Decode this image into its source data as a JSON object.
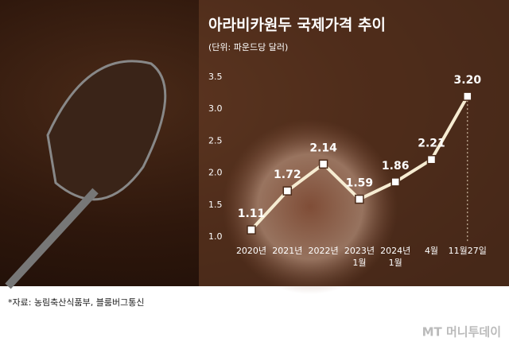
{
  "chart_data": {
    "type": "line",
    "title": "아라비카원두 국제가격 추이",
    "subtitle": "(단위: 파운드당 달러)",
    "categories": [
      "2020년",
      "2021년",
      "2022년",
      "2023년\n1월",
      "2024년\n1월",
      "4월",
      "11월27일"
    ],
    "values": [
      1.11,
      1.72,
      2.14,
      1.59,
      1.86,
      2.21,
      3.2
    ],
    "value_labels": [
      "1.11",
      "1.72",
      "2.14",
      "1.59",
      "1.86",
      "2.21",
      "3.20"
    ],
    "color": "#f6ecd2",
    "ylim": [
      1.0,
      3.5
    ],
    "yticks": [
      {
        "value": 1.0,
        "label": "1.0"
      },
      1.5,
      {
        "value": 2.0,
        "label": "2.0"
      },
      2.5,
      {
        "value": 3.0,
        "label": "3.0"
      },
      3.5
    ],
    "source": "*자료: 농림축산식품부, 블룸버그통신",
    "watermark": "MT 머니투데이"
  }
}
